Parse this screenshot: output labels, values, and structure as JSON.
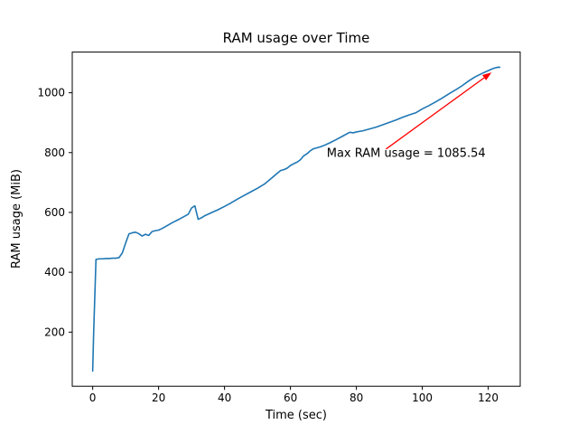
{
  "chart_data": {
    "type": "line",
    "title": "RAM usage over Time",
    "xlabel": "Time (sec)",
    "ylabel": "RAM usage (MiB)",
    "xlim": [
      -6.2,
      129.7
    ],
    "ylim": [
      19,
      1136
    ],
    "xticks": [
      0,
      20,
      40,
      60,
      80,
      100,
      120
    ],
    "yticks": [
      200,
      400,
      600,
      800,
      1000
    ],
    "grid": false,
    "legend": "none",
    "line_color": "#1f77b4",
    "annotation": {
      "text": "Max RAM usage = 1085.54",
      "color": "#ff0000",
      "text_x": 71,
      "text_y": 785,
      "arrow_tail_x": 89,
      "arrow_tail_y": 812,
      "arrow_tip_x": 121,
      "arrow_tip_y": 1068
    },
    "max_value": 1085.54,
    "series": [
      {
        "name": "RAM usage",
        "x": [
          0,
          0.3,
          1,
          2,
          3,
          4,
          5,
          6,
          7,
          8,
          9,
          10,
          11,
          12,
          13,
          14,
          15,
          16,
          17,
          18,
          19,
          20,
          21,
          22,
          24,
          26,
          28,
          29,
          30,
          31,
          32,
          33,
          34,
          36,
          38,
          40,
          42,
          44,
          46,
          48,
          50,
          52,
          54,
          56,
          57,
          58,
          59,
          60,
          61,
          62,
          63,
          64,
          65,
          66,
          67,
          68,
          69,
          70,
          72,
          74,
          76,
          77,
          78,
          79,
          80,
          82,
          84,
          86,
          88,
          90,
          92,
          94,
          96,
          98,
          100,
          102,
          104,
          106,
          108,
          110,
          112,
          114,
          116,
          118,
          120,
          121,
          122,
          123,
          123.5
        ],
        "y": [
          70,
          200,
          443,
          445,
          445,
          446,
          446,
          447,
          447,
          449,
          465,
          498,
          528,
          532,
          534,
          529,
          521,
          527,
          523,
          536,
          539,
          541,
          546,
          552,
          565,
          576,
          588,
          594,
          615,
          622,
          577,
          582,
          589,
          599,
          609,
          620,
          632,
          645,
          657,
          669,
          681,
          694,
          712,
          731,
          740,
          743,
          748,
          757,
          763,
          768,
          776,
          789,
          796,
          806,
          813,
          816,
          819,
          823,
          833,
          844,
          856,
          862,
          868,
          866,
          869,
          873,
          879,
          885,
          893,
          901,
          909,
          918,
          926,
          933,
          946,
          957,
          969,
          982,
          996,
          1009,
          1023,
          1039,
          1053,
          1064,
          1074,
          1079,
          1083,
          1085.54,
          1085
        ]
      }
    ]
  }
}
